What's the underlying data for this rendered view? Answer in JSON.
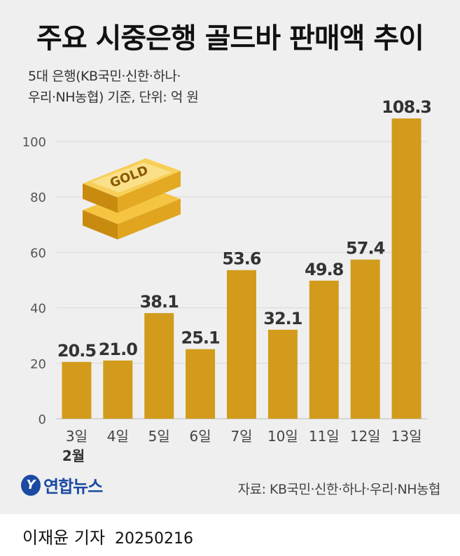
{
  "title": "주요 시중은행 골드바 판매액 추이",
  "subtitle_line1": "5대 은행(KB국민·신한·하나·",
  "subtitle_line2": "우리·NH농협) 기준, 단위: 억 원",
  "source": "자료: KB국민·신한·하나·우리·NH농협",
  "logo": {
    "mark": "Y",
    "text": "연합뉴스"
  },
  "credit": {
    "name": "이재윤 기자",
    "date": "20250216"
  },
  "month_label": "2월",
  "gold_bar_label": "GOLD",
  "colors": {
    "bar": "#d29b1c",
    "background": "#efefef",
    "grid": "#d8d8d8",
    "label": "#333333"
  },
  "chart_data": {
    "type": "bar",
    "title": "주요 시중은행 골드바 판매액 추이",
    "categories": [
      "3일",
      "4일",
      "5일",
      "6일",
      "7일",
      "10일",
      "11일",
      "12일",
      "13일"
    ],
    "values": [
      20.5,
      21.0,
      38.1,
      25.1,
      53.6,
      32.1,
      49.8,
      57.4,
      108.3
    ],
    "value_labels": [
      "20.5",
      "21.0",
      "38.1",
      "25.1",
      "53.6",
      "32.1",
      "49.8",
      "57.4",
      "108.3"
    ],
    "yticks": [
      0,
      20,
      40,
      60,
      80,
      100
    ],
    "ylim": [
      0,
      110
    ],
    "grid": true,
    "legend": "none"
  }
}
